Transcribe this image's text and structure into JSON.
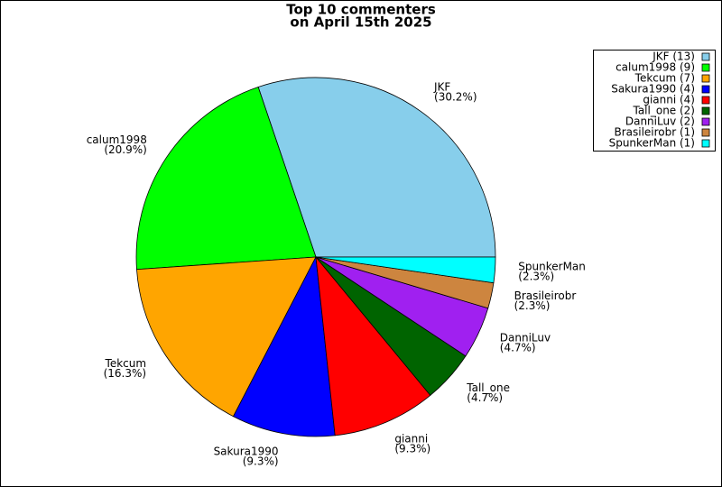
{
  "chart_data": {
    "type": "pie",
    "title": "Top 10 commenters",
    "subtitle": "on April 15th 2025",
    "categories": [
      "JKF",
      "calum1998",
      "Tekcum",
      "Sakura1990",
      "gianni",
      "Tall_one",
      "DanniLuv",
      "Brasileirobr",
      "SpunkerMan"
    ],
    "values": [
      30.2,
      20.9,
      16.3,
      9.3,
      9.3,
      4.7,
      4.7,
      2.3,
      2.3
    ],
    "value_labels": [
      "(30.2%)",
      "(20.9%)",
      "(16.3%)",
      "(9.3%)",
      "(9.3%)",
      "(4.7%)",
      "(4.7%)",
      "(2.3%)",
      "(2.3%)"
    ],
    "legend_labels": [
      "JKF (13)",
      "calum1998 (9)",
      "Tekcum (7)",
      "Sakura1990 (4)",
      "gianni (4)",
      "Tall_one (2)",
      "DanniLuv (2)",
      "Brasileirobr (1)",
      "SpunkerMan (1)"
    ],
    "colors": [
      "#87ceeb",
      "#00ff00",
      "#ffa500",
      "#0000ff",
      "#ff0000",
      "#006400",
      "#a020f0",
      "#cd853f",
      "#00ffff"
    ],
    "legend": "upper right"
  }
}
